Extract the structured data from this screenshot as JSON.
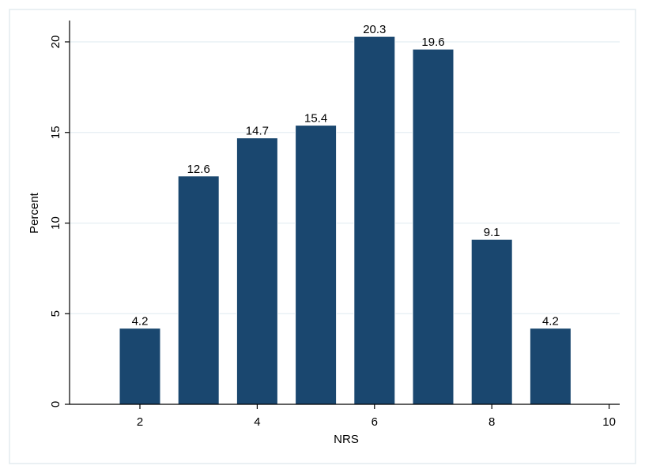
{
  "chart_data": {
    "type": "bar",
    "xlabel": "NRS",
    "ylabel": "Percent",
    "x": [
      2,
      3,
      4,
      5,
      6,
      7,
      8,
      9
    ],
    "values": [
      4.2,
      12.6,
      14.7,
      15.4,
      20.3,
      19.6,
      9.1,
      4.2
    ],
    "data_labels": [
      "4.2",
      "12.6",
      "14.7",
      "15.4",
      "20.3",
      "19.6",
      "9.1",
      "4.2"
    ],
    "xlim": [
      1,
      10
    ],
    "ylim": [
      0,
      21
    ],
    "xticks": [
      2,
      4,
      6,
      8,
      10
    ],
    "xtick_labels": [
      "2",
      "4",
      "6",
      "8",
      "10"
    ],
    "yticks": [
      0,
      5,
      10,
      15,
      20
    ],
    "ytick_labels": [
      "0",
      "5",
      "10",
      "15",
      "20"
    ],
    "grid": "horizontal",
    "legend": "none",
    "colors": {
      "bar": "#1a476f",
      "bar_edge": "#ffffff",
      "grid": "#e4eef2",
      "axis": "#000000",
      "frame": "#e3ebef",
      "background": "#ffffff"
    }
  }
}
